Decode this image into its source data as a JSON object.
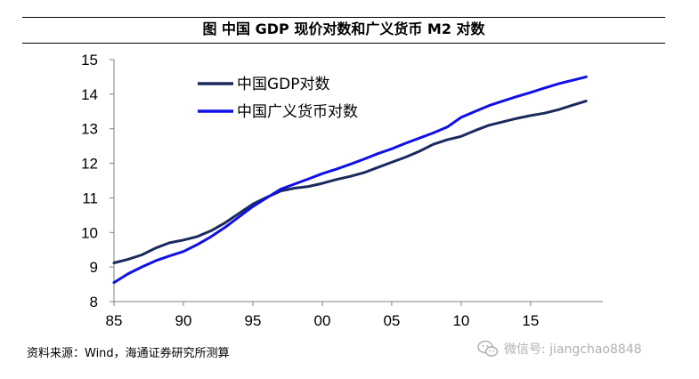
{
  "header": {
    "title": "图  中国 GDP 现价对数和广义货币 M2 对数"
  },
  "footer": {
    "source": "资料来源：Wind，海通证券研究所测算",
    "watermark_text": "微信号: jiangchao8848",
    "watermark_icon": "wechat-icon"
  },
  "colors": {
    "gdp_series": "#1b2a5e",
    "m2_series": "#1010e6",
    "axis": "#7f7f7f"
  },
  "chart_data": {
    "type": "line",
    "title": "中国 GDP 现价对数和广义货币 M2 对数",
    "xlabel": "",
    "ylabel": "",
    "xlim": [
      1985,
      2020.2
    ],
    "ylim": [
      8,
      15
    ],
    "xticks": [
      1985,
      1990,
      1995,
      2000,
      2005,
      2010,
      2015
    ],
    "xtick_labels": [
      "85",
      "90",
      "95",
      "00",
      "05",
      "10",
      "15"
    ],
    "yticks": [
      8,
      9,
      10,
      11,
      12,
      13,
      14,
      15
    ],
    "ytick_labels": [
      "8",
      "9",
      "10",
      "11",
      "12",
      "13",
      "14",
      "15"
    ],
    "grid": false,
    "legend_position": "top-center",
    "x": [
      1985,
      1986,
      1987,
      1988,
      1989,
      1990,
      1991,
      1992,
      1993,
      1994,
      1995,
      1996,
      1997,
      1998,
      1999,
      2000,
      2001,
      2002,
      2003,
      2004,
      2005,
      2006,
      2007,
      2008,
      2009,
      2010,
      2011,
      2012,
      2013,
      2014,
      2015,
      2016,
      2017,
      2018,
      2019
    ],
    "series": [
      {
        "name": "中国GDP对数",
        "values": [
          9.12,
          9.22,
          9.35,
          9.55,
          9.7,
          9.78,
          9.88,
          10.05,
          10.28,
          10.55,
          10.82,
          11.02,
          11.2,
          11.28,
          11.33,
          11.42,
          11.53,
          11.62,
          11.73,
          11.88,
          12.03,
          12.18,
          12.35,
          12.55,
          12.68,
          12.78,
          12.95,
          13.1,
          13.2,
          13.3,
          13.38,
          13.45,
          13.55,
          13.68,
          13.8
        ]
      },
      {
        "name": "中国广义货币对数",
        "values": [
          8.55,
          8.8,
          9.0,
          9.18,
          9.32,
          9.45,
          9.65,
          9.88,
          10.15,
          10.45,
          10.75,
          11.0,
          11.25,
          11.4,
          11.55,
          11.7,
          11.83,
          11.97,
          12.12,
          12.28,
          12.42,
          12.58,
          12.73,
          12.88,
          13.05,
          13.33,
          13.5,
          13.67,
          13.8,
          13.93,
          14.05,
          14.18,
          14.3,
          14.4,
          14.5
        ]
      }
    ]
  }
}
